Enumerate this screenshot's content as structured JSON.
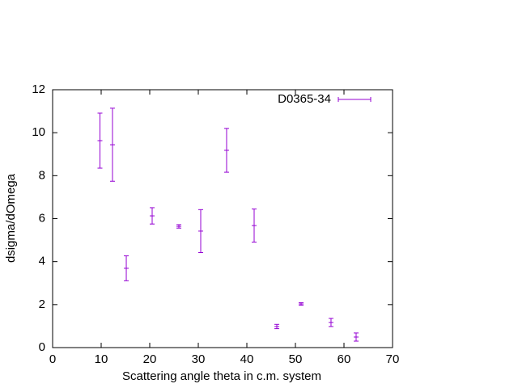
{
  "chart_data": {
    "type": "errorbar",
    "xlabel": "Scattering angle theta in c.m. system",
    "ylabel": "dsigma/dOmega",
    "xlim": [
      0,
      70
    ],
    "xticks": [
      0,
      10,
      20,
      30,
      40,
      50,
      60,
      70
    ],
    "ylim": [
      0,
      12
    ],
    "yticks": [
      0,
      2,
      4,
      6,
      8,
      10,
      12
    ],
    "legend": "top-right",
    "series": [
      {
        "name": "D0365-34",
        "color": "#9400d3",
        "x": [
          9.75,
          12.33,
          15.17,
          20.5,
          26,
          30.5,
          35.83,
          41.5,
          46.17,
          51.17,
          57.33,
          62.5
        ],
        "values": [
          9.63,
          9.44,
          3.69,
          6.13,
          5.64,
          5.42,
          9.18,
          5.68,
          0.98,
          2.03,
          1.17,
          0.49
        ],
        "errors": [
          1.28,
          1.7,
          0.58,
          0.38,
          0.08,
          1.0,
          1.02,
          0.77,
          0.1,
          0.06,
          0.19,
          0.19
        ]
      }
    ]
  }
}
